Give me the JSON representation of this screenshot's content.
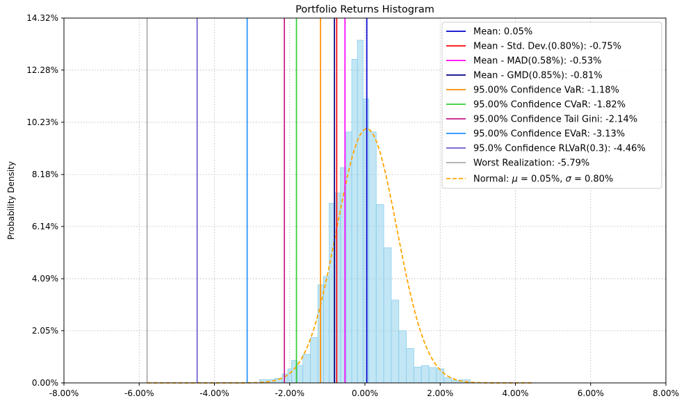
{
  "chart_data": {
    "type": "bar",
    "title": "Portfolio Returns Histogram",
    "xlabel": "",
    "ylabel": "Probability Density",
    "xlim": [
      -8.0,
      8.0
    ],
    "ylim": [
      0.0,
      14.32
    ],
    "x_ticks": [
      "-8.00%",
      "-6.00%",
      "-4.00%",
      "-2.00%",
      "0.00%",
      "2.00%",
      "4.00%",
      "6.00%",
      "8.00%"
    ],
    "y_ticks": [
      "0.00%",
      "2.05%",
      "4.09%",
      "6.14%",
      "8.18%",
      "10.23%",
      "12.28%",
      "14.32%"
    ],
    "y_tick_values": [
      0.0,
      2.05,
      4.09,
      6.14,
      8.18,
      10.23,
      12.28,
      14.32
    ],
    "grid": true,
    "legend_position": "top-right",
    "histogram": {
      "color": "#87ceeb",
      "bins": [
        {
          "x0": -3.4,
          "x1": -2.8,
          "density": 0.0
        },
        {
          "x0": -2.8,
          "x1": -2.4,
          "density": 0.13
        },
        {
          "x0": -2.4,
          "x1": -2.2,
          "density": 0.18
        },
        {
          "x0": -2.2,
          "x1": -2.05,
          "density": 0.35
        },
        {
          "x0": -2.05,
          "x1": -1.95,
          "density": 0.55
        },
        {
          "x0": -1.95,
          "x1": -1.8,
          "density": 0.88
        },
        {
          "x0": -1.8,
          "x1": -1.65,
          "density": 0.68
        },
        {
          "x0": -1.65,
          "x1": -1.45,
          "density": 1.12
        },
        {
          "x0": -1.45,
          "x1": -1.25,
          "density": 1.78
        },
        {
          "x0": -1.25,
          "x1": -1.1,
          "density": 3.85
        },
        {
          "x0": -1.1,
          "x1": -0.95,
          "density": 4.18
        },
        {
          "x0": -0.95,
          "x1": -0.8,
          "density": 7.05
        },
        {
          "x0": -0.8,
          "x1": -0.65,
          "density": 7.45
        },
        {
          "x0": -0.65,
          "x1": -0.5,
          "density": 8.45
        },
        {
          "x0": -0.5,
          "x1": -0.35,
          "density": 9.85
        },
        {
          "x0": -0.35,
          "x1": -0.2,
          "density": 12.7
        },
        {
          "x0": -0.2,
          "x1": -0.05,
          "density": 13.45
        },
        {
          "x0": -0.05,
          "x1": 0.1,
          "density": 11.15
        },
        {
          "x0": 0.1,
          "x1": 0.3,
          "density": 9.85
        },
        {
          "x0": 0.3,
          "x1": 0.5,
          "density": 7.0
        },
        {
          "x0": 0.5,
          "x1": 0.7,
          "density": 5.3
        },
        {
          "x0": 0.7,
          "x1": 0.9,
          "density": 3.25
        },
        {
          "x0": 0.9,
          "x1": 1.1,
          "density": 2.05
        },
        {
          "x0": 1.1,
          "x1": 1.3,
          "density": 1.35
        },
        {
          "x0": 1.3,
          "x1": 1.5,
          "density": 0.62
        },
        {
          "x0": 1.5,
          "x1": 1.7,
          "density": 0.68
        },
        {
          "x0": 1.7,
          "x1": 1.9,
          "density": 0.6
        },
        {
          "x0": 1.9,
          "x1": 2.1,
          "density": 0.55
        },
        {
          "x0": 2.1,
          "x1": 2.3,
          "density": 0.2
        },
        {
          "x0": 2.3,
          "x1": 2.5,
          "density": 0.1
        },
        {
          "x0": 2.5,
          "x1": 2.8,
          "density": 0.12
        }
      ]
    },
    "series": [
      {
        "name": "Mean: 0.05%",
        "x": 0.05,
        "color": "#0000cd",
        "style": "solid"
      },
      {
        "name": "Mean - Std. Dev.(0.80%): -0.75%",
        "x": -0.75,
        "color": "#ff0000",
        "style": "solid"
      },
      {
        "name": "Mean - MAD(0.58%): -0.53%",
        "x": -0.53,
        "color": "#ff00ff",
        "style": "solid"
      },
      {
        "name": "Mean - GMD(0.85%): -0.81%",
        "x": -0.81,
        "color": "#000080",
        "style": "solid"
      },
      {
        "name": "95.00% Confidence VaR: -1.18%",
        "x": -1.18,
        "color": "#ff8c00",
        "style": "solid"
      },
      {
        "name": "95.00% Confidence CVaR: -1.82%",
        "x": -1.82,
        "color": "#32cd32",
        "style": "solid"
      },
      {
        "name": "95.00% Confidence Tail Gini: -2.14%",
        "x": -2.14,
        "color": "#c71585",
        "style": "solid"
      },
      {
        "name": "95.00% Confidence EVaR: -3.13%",
        "x": -3.13,
        "color": "#1e90ff",
        "style": "solid"
      },
      {
        "name": "95.0% Confidence RLVaR(0.3): -4.46%",
        "x": -4.46,
        "color": "#6a5acd",
        "style": "solid"
      },
      {
        "name": "Worst Realization: -5.79%",
        "x": -5.79,
        "color": "#a9a9a9",
        "style": "solid"
      }
    ],
    "normal_curve": {
      "name_prefix": "Normal: ",
      "mu_text": "μ",
      "mu_value": "0.05%",
      "sigma_text": "σ",
      "sigma_value": "0.80%",
      "mu": 0.05,
      "sigma": 0.8,
      "x_range": [
        -5.79,
        4.45
      ],
      "color": "#ffa500",
      "style": "dashed"
    }
  }
}
